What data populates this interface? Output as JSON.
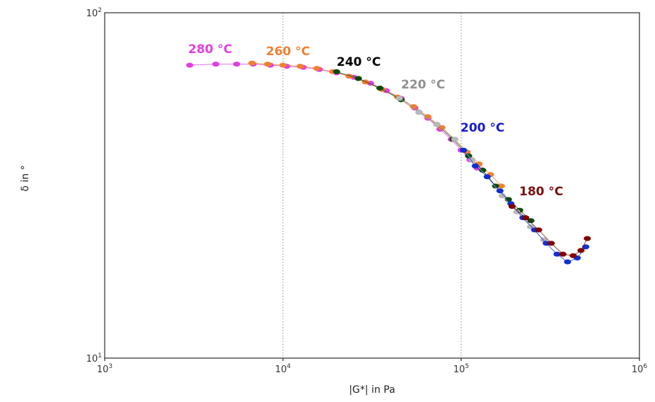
{
  "chart_data": {
    "type": "scatter",
    "title": "",
    "xlabel": "|G*| in Pa",
    "ylabel": "δ in °",
    "x_scale": "log",
    "y_scale": "log",
    "xlim": [
      1000,
      1000000
    ],
    "ylim": [
      10,
      100
    ],
    "x_ticks": [
      {
        "base": "10",
        "exp": "3"
      },
      {
        "base": "10",
        "exp": "4"
      },
      {
        "base": "10",
        "exp": "5"
      },
      {
        "base": "10",
        "exp": "6"
      }
    ],
    "y_ticks": [
      {
        "base": "10",
        "exp": "1"
      },
      {
        "base": "10",
        "exp": "2"
      }
    ],
    "grid": true,
    "series": [
      {
        "name": "280 °C",
        "color": "#e040e0",
        "points": [
          [
            3000,
            70.5
          ],
          [
            4200,
            71
          ],
          [
            5500,
            71
          ],
          [
            6800,
            71
          ],
          [
            8500,
            70.5
          ],
          [
            10500,
            70
          ],
          [
            13000,
            69.5
          ],
          [
            16000,
            68.5
          ],
          [
            20000,
            67
          ],
          [
            25000,
            65
          ],
          [
            31000,
            62.5
          ],
          [
            38000,
            59.5
          ],
          [
            46000,
            56.5
          ],
          [
            55000,
            53
          ],
          [
            65000,
            49.5
          ],
          [
            76000,
            46
          ],
          [
            88000,
            43
          ],
          [
            100000,
            40
          ],
          [
            112000,
            37.5
          ],
          [
            123000,
            35.5
          ]
        ]
      },
      {
        "name": "260 °C",
        "color": "#f08030",
        "points": [
          [
            6700,
            71.5
          ],
          [
            8200,
            71
          ],
          [
            10000,
            70.5
          ],
          [
            12500,
            70
          ],
          [
            15500,
            69
          ],
          [
            19000,
            67.5
          ],
          [
            23500,
            65.5
          ],
          [
            29000,
            63
          ],
          [
            36000,
            60
          ],
          [
            44000,
            57
          ],
          [
            54000,
            53.5
          ],
          [
            65000,
            50
          ],
          [
            78000,
            46.5
          ],
          [
            92000,
            43
          ],
          [
            108000,
            39.5
          ],
          [
            126000,
            36.5
          ],
          [
            146000,
            34
          ],
          [
            168000,
            31.5
          ]
        ]
      },
      {
        "name": "240 °C",
        "color": "#0a4a0a",
        "points": [
          [
            20000,
            67.5
          ],
          [
            26500,
            64.5
          ],
          [
            35000,
            60.5
          ],
          [
            46000,
            56
          ],
          [
            58000,
            51.5
          ],
          [
            73000,
            47.5
          ],
          [
            90000,
            43
          ],
          [
            110000,
            38.5
          ],
          [
            132000,
            35
          ],
          [
            156000,
            31.5
          ],
          [
            184000,
            28.8
          ],
          [
            213000,
            26.8
          ],
          [
            246000,
            25
          ]
        ]
      },
      {
        "name": "220 °C",
        "color": "#b8b8b8",
        "points": [
          [
            45000,
            56.5
          ],
          [
            58000,
            51.5
          ],
          [
            73000,
            47.5
          ],
          [
            92000,
            43
          ],
          [
            115000,
            37.5
          ],
          [
            140000,
            33.5
          ],
          [
            170000,
            29.5
          ],
          [
            205000,
            26.5
          ],
          [
            245000,
            24
          ],
          [
            290000,
            22
          ]
        ]
      },
      {
        "name": "200 °C",
        "color": "#1030d0",
        "points": [
          [
            103000,
            40
          ],
          [
            120000,
            36
          ],
          [
            140000,
            33.5
          ],
          [
            165000,
            30.5
          ],
          [
            190000,
            28
          ],
          [
            222000,
            25.5
          ],
          [
            258000,
            23.5
          ],
          [
            300000,
            21.5
          ],
          [
            345000,
            20
          ],
          [
            395000,
            19
          ],
          [
            448000,
            19.5
          ],
          [
            500000,
            21
          ]
        ]
      },
      {
        "name": "180 °C",
        "color": "#800000",
        "points": [
          [
            193000,
            27.5
          ],
          [
            230000,
            25.5
          ],
          [
            272000,
            23.5
          ],
          [
            320000,
            21.5
          ],
          [
            372000,
            20
          ],
          [
            425000,
            19.8
          ],
          [
            470000,
            20.5
          ],
          [
            510000,
            22.2
          ]
        ]
      }
    ],
    "annotations": [
      {
        "text": "280 °C",
        "color": "#e040e0"
      },
      {
        "text": "260 °C",
        "color": "#f08030"
      },
      {
        "text": "240 °C",
        "color": "#000000"
      },
      {
        "text": "220 °C",
        "color": "#909090"
      },
      {
        "text": "200 °C",
        "color": "#1a1ad0"
      },
      {
        "text": "180 °C",
        "color": "#7a1010"
      }
    ]
  }
}
